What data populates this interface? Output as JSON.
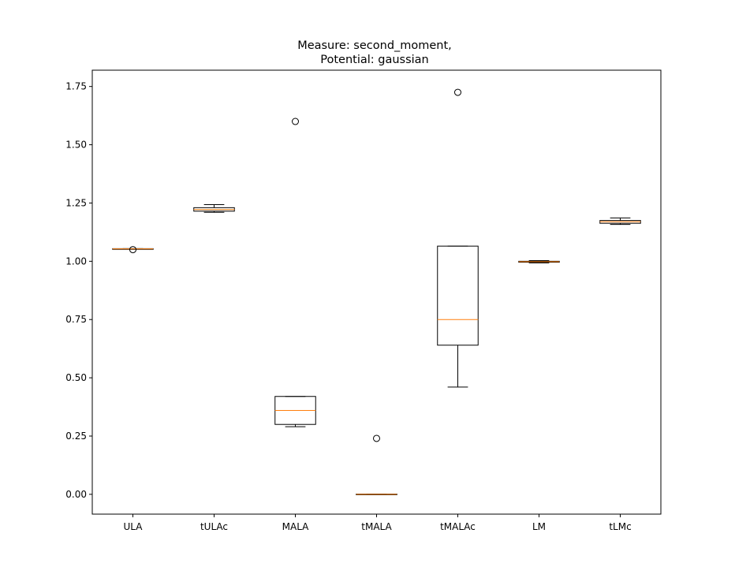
{
  "chart_data": {
    "type": "boxplot",
    "title_lines": [
      "Measure: second_moment,",
      "Potential: gaussian"
    ],
    "xlabel": "",
    "ylabel": "",
    "ylim": [
      -0.085,
      1.82
    ],
    "yticks": [
      0.0,
      0.25,
      0.5,
      0.75,
      1.0,
      1.25,
      1.5,
      1.75
    ],
    "ytick_labels": [
      "0.00",
      "0.25",
      "0.50",
      "0.75",
      "1.00",
      "1.25",
      "1.50",
      "1.75"
    ],
    "grid": false,
    "legend": "none",
    "colors": {
      "box": "#000000",
      "median": "#ff7f0e",
      "frame": "#000000"
    },
    "categories": [
      "ULA",
      "tULAc",
      "MALA",
      "tMALA",
      "tMALAc",
      "LM",
      "tLMc"
    ],
    "boxes": [
      {
        "label": "ULA",
        "whislo": 1.052,
        "q1": 1.052,
        "median": 1.053,
        "q3": 1.054,
        "whishi": 1.054,
        "fliers": [
          1.05
        ]
      },
      {
        "label": "tULAc",
        "whislo": 1.21,
        "q1": 1.215,
        "median": 1.222,
        "q3": 1.23,
        "whishi": 1.243,
        "fliers": []
      },
      {
        "label": "MALA",
        "whislo": 0.29,
        "q1": 0.3,
        "median": 0.36,
        "q3": 0.42,
        "whishi": 0.42,
        "fliers": [
          1.6
        ]
      },
      {
        "label": "tMALA",
        "whislo": 0.0,
        "q1": 0.0,
        "median": 0.0,
        "q3": 0.001,
        "whishi": 0.001,
        "fliers": [
          0.24
        ]
      },
      {
        "label": "tMALAc",
        "whislo": 0.46,
        "q1": 0.64,
        "median": 0.75,
        "q3": 1.065,
        "whishi": 1.065,
        "fliers": [
          1.725
        ]
      },
      {
        "label": "LM",
        "whislo": 0.993,
        "q1": 0.996,
        "median": 0.998,
        "q3": 1.0,
        "whishi": 1.003,
        "fliers": []
      },
      {
        "label": "tLMc",
        "whislo": 1.158,
        "q1": 1.163,
        "median": 1.17,
        "q3": 1.175,
        "whishi": 1.186,
        "fliers": []
      }
    ]
  }
}
